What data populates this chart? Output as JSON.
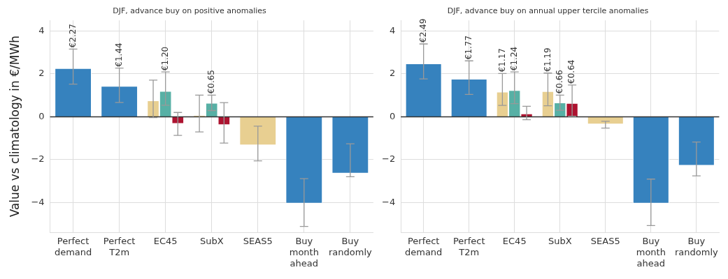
{
  "chart_data": [
    {
      "type": "bar",
      "title": "DJF, advance buy on positive anomalies",
      "ylabel": "Value vs climatology in €/MWh",
      "categories": [
        "Perfect\ndemand",
        "Perfect\nT2m",
        "EC45",
        "SubX",
        "SEAS5",
        "Buy\nmonth\nahead",
        "Buy\nrandomly"
      ],
      "ylim": [
        -5.4,
        4.5
      ],
      "yticks": [
        -4,
        -2,
        0,
        2,
        4
      ],
      "grid": true,
      "ref_lines": [
        {
          "axis": "y",
          "value": 0,
          "color": "#333333"
        }
      ],
      "series": [
        {
          "color": "#3682be",
          "values": [
            2.27,
            1.44,
            null,
            null,
            null,
            -4.05,
            -2.65
          ],
          "errors": [
            [
              1.52,
              3.16
            ],
            [
              0.67,
              2.27
            ],
            null,
            null,
            null,
            [
              -5.12,
              -2.89
            ],
            [
              -2.8,
              -1.26
            ]
          ],
          "value_labels": [
            "€2.27",
            "€1.44",
            null,
            null,
            null,
            null,
            null
          ]
        },
        {
          "color": "#e8cf91",
          "values": [
            null,
            null,
            0.76,
            0.08,
            -1.33,
            null,
            null
          ],
          "errors": [
            null,
            null,
            [
              -0.04,
              1.71
            ],
            [
              -0.71,
              1.01
            ],
            [
              -2.06,
              -0.44
            ],
            null,
            null
          ],
          "value_labels": [
            null,
            null,
            null,
            null,
            null,
            null,
            null
          ]
        },
        {
          "color": "#57b0a5",
          "values": [
            null,
            null,
            1.2,
            0.65,
            null,
            null,
            null
          ],
          "errors": [
            null,
            null,
            [
              0.54,
              2.09
            ],
            [
              0.29,
              1.01
            ],
            null,
            null,
            null
          ],
          "value_labels": [
            null,
            null,
            "€1.20",
            "€0.65",
            null,
            null,
            null
          ]
        },
        {
          "color": "#ad1330",
          "values": [
            null,
            null,
            -0.33,
            -0.39,
            null,
            null,
            null
          ],
          "errors": [
            null,
            null,
            [
              -0.87,
              0.2
            ],
            [
              -1.23,
              0.66
            ],
            null,
            null,
            null
          ],
          "value_labels": [
            null,
            null,
            null,
            null,
            null,
            null,
            null
          ]
        }
      ]
    },
    {
      "type": "bar",
      "title": "DJF, advance buy on annual upper tercile anomalies",
      "categories": [
        "Perfect\ndemand",
        "Perfect\nT2m",
        "EC45",
        "SubX",
        "SEAS5",
        "Buy\nmonth\nahead",
        "Buy\nrandomly"
      ],
      "ylim": [
        -5.4,
        4.5
      ],
      "yticks": [
        -4,
        -2,
        0,
        2,
        4
      ],
      "grid": true,
      "ref_lines": [
        {
          "axis": "y",
          "value": 0,
          "color": "#333333"
        }
      ],
      "series": [
        {
          "color": "#3682be",
          "values": [
            2.49,
            1.77,
            null,
            null,
            null,
            -4.05,
            -2.28
          ],
          "errors": [
            [
              1.77,
              3.4
            ],
            [
              1.04,
              2.61
            ],
            null,
            null,
            null,
            [
              -5.08,
              -2.91
            ],
            [
              -2.76,
              -1.18
            ]
          ],
          "value_labels": [
            "€2.49",
            "€1.77",
            null,
            null,
            null,
            null,
            null
          ]
        },
        {
          "color": "#e8cf91",
          "values": [
            null,
            null,
            1.17,
            1.19,
            -0.35,
            null,
            null
          ],
          "errors": [
            null,
            null,
            [
              0.53,
              2.02
            ],
            [
              0.51,
              2.04
            ],
            [
              -0.53,
              -0.21
            ],
            null,
            null
          ],
          "value_labels": [
            null,
            null,
            "€1.17",
            "€1.19",
            null,
            null,
            null
          ]
        },
        {
          "color": "#57b0a5",
          "values": [
            null,
            null,
            1.24,
            0.66,
            null,
            null,
            null
          ],
          "errors": [
            null,
            null,
            [
              0.61,
              2.09
            ],
            [
              0.3,
              1.01
            ],
            null,
            null,
            null
          ],
          "value_labels": [
            null,
            null,
            "€1.24",
            "€0.66",
            null,
            null,
            null
          ]
        },
        {
          "color": "#ad1330",
          "values": [
            null,
            null,
            0.15,
            0.64,
            null,
            null,
            null
          ],
          "errors": [
            null,
            null,
            [
              -0.14,
              0.49
            ],
            [
              0.02,
              1.48
            ],
            null,
            null,
            null
          ],
          "value_labels": [
            null,
            null,
            null,
            "€0.64",
            null,
            null,
            null
          ]
        }
      ]
    }
  ]
}
